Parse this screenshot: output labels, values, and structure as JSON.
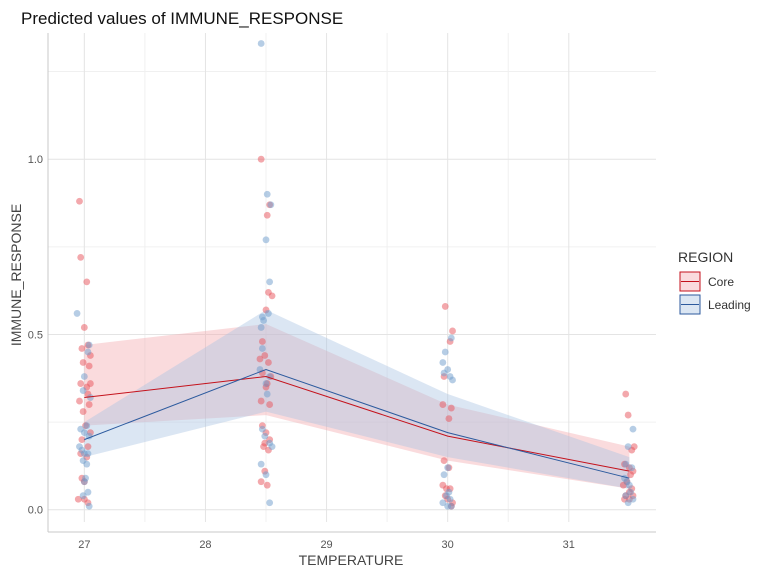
{
  "chart_data": {
    "type": "line",
    "title": "Predicted values of IMMUNE_RESPONSE",
    "xlabel": "TEMPERATURE",
    "ylabel": "IMMUNE_RESPONSE",
    "xlim": [
      26.7,
      31.72
    ],
    "ylim": [
      -0.035,
      1.36
    ],
    "x_ticks": [
      27,
      28,
      29,
      30,
      31
    ],
    "x_tick_labels": [
      "27",
      "28",
      "29",
      "30",
      "31"
    ],
    "y_ticks": [
      0,
      0.5,
      1
    ],
    "y_tick_labels": [
      "0.0",
      "0.5",
      "1.0"
    ],
    "grid": true,
    "legend": {
      "title": "REGION",
      "position": "right"
    },
    "colors": {
      "Core": "#c4121c",
      "Leading": "#2c5a9e",
      "Core_fill": "#f4a9ad",
      "Leading_fill": "#a9c4e2",
      "Core_point": "#e8525a",
      "Leading_point": "#6e9bcb"
    },
    "series": [
      {
        "name": "Core",
        "x": [
          27,
          28.5,
          30,
          31.5
        ],
        "y": [
          0.32,
          0.38,
          0.21,
          0.11
        ],
        "ci_low": [
          0.24,
          0.27,
          0.14,
          0.06
        ],
        "ci_high": [
          0.47,
          0.53,
          0.3,
          0.18
        ],
        "points": [
          [
            26.96,
            0.88
          ],
          [
            26.97,
            0.72
          ],
          [
            27.02,
            0.65
          ],
          [
            27.0,
            0.52
          ],
          [
            26.98,
            0.46
          ],
          [
            27.03,
            0.47
          ],
          [
            27.05,
            0.44
          ],
          [
            26.99,
            0.42
          ],
          [
            27.04,
            0.41
          ],
          [
            26.97,
            0.36
          ],
          [
            27.02,
            0.35
          ],
          [
            27.05,
            0.36
          ],
          [
            26.96,
            0.31
          ],
          [
            27.03,
            0.33
          ],
          [
            27.04,
            0.3
          ],
          [
            26.99,
            0.28
          ],
          [
            27.01,
            0.24
          ],
          [
            27.05,
            0.22
          ],
          [
            26.98,
            0.2
          ],
          [
            27.03,
            0.18
          ],
          [
            26.97,
            0.16
          ],
          [
            27.02,
            0.15
          ],
          [
            26.98,
            0.09
          ],
          [
            27.0,
            0.08
          ],
          [
            26.95,
            0.03
          ],
          [
            27.0,
            0.03
          ],
          [
            27.03,
            0.02
          ],
          [
            28.46,
            1.0
          ],
          [
            28.53,
            0.87
          ],
          [
            28.51,
            0.84
          ],
          [
            28.52,
            0.62
          ],
          [
            28.55,
            0.61
          ],
          [
            28.5,
            0.57
          ],
          [
            28.47,
            0.48
          ],
          [
            28.49,
            0.44
          ],
          [
            28.45,
            0.43
          ],
          [
            28.52,
            0.42
          ],
          [
            28.47,
            0.39
          ],
          [
            28.54,
            0.38
          ],
          [
            28.51,
            0.36
          ],
          [
            28.5,
            0.35
          ],
          [
            28.46,
            0.31
          ],
          [
            28.53,
            0.3
          ],
          [
            28.47,
            0.24
          ],
          [
            28.5,
            0.22
          ],
          [
            28.53,
            0.2
          ],
          [
            28.49,
            0.19
          ],
          [
            28.48,
            0.18
          ],
          [
            28.52,
            0.17
          ],
          [
            28.49,
            0.11
          ],
          [
            28.46,
            0.08
          ],
          [
            28.51,
            0.07
          ],
          [
            29.98,
            0.58
          ],
          [
            30.04,
            0.51
          ],
          [
            30.02,
            0.48
          ],
          [
            29.97,
            0.38
          ],
          [
            29.96,
            0.3
          ],
          [
            30.03,
            0.29
          ],
          [
            30.01,
            0.26
          ],
          [
            29.97,
            0.14
          ],
          [
            30.01,
            0.12
          ],
          [
            29.96,
            0.07
          ],
          [
            29.99,
            0.06
          ],
          [
            30.02,
            0.06
          ],
          [
            29.98,
            0.04
          ],
          [
            30.0,
            0.03
          ],
          [
            30.04,
            0.02
          ],
          [
            30.03,
            0.01
          ],
          [
            31.47,
            0.33
          ],
          [
            31.49,
            0.27
          ],
          [
            31.54,
            0.18
          ],
          [
            31.52,
            0.17
          ],
          [
            31.46,
            0.13
          ],
          [
            31.5,
            0.12
          ],
          [
            31.53,
            0.11
          ],
          [
            31.51,
            0.1
          ],
          [
            31.48,
            0.08
          ],
          [
            31.45,
            0.07
          ],
          [
            31.52,
            0.06
          ],
          [
            31.5,
            0.05
          ],
          [
            31.47,
            0.04
          ],
          [
            31.53,
            0.04
          ],
          [
            31.46,
            0.03
          ],
          [
            31.5,
            0.03
          ]
        ]
      },
      {
        "name": "Leading",
        "x": [
          27,
          28.5,
          30,
          31.5
        ],
        "y": [
          0.2,
          0.4,
          0.22,
          0.09
        ],
        "ci_low": [
          0.15,
          0.28,
          0.15,
          0.06
        ],
        "ci_high": [
          0.25,
          0.57,
          0.33,
          0.15
        ],
        "points": [
          [
            26.94,
            0.56
          ],
          [
            27.04,
            0.47
          ],
          [
            27.03,
            0.45
          ],
          [
            27.0,
            0.38
          ],
          [
            26.99,
            0.34
          ],
          [
            27.05,
            0.32
          ],
          [
            27.02,
            0.24
          ],
          [
            26.97,
            0.23
          ],
          [
            27.0,
            0.22
          ],
          [
            27.04,
            0.21
          ],
          [
            26.96,
            0.18
          ],
          [
            26.98,
            0.17
          ],
          [
            27.0,
            0.16
          ],
          [
            27.03,
            0.16
          ],
          [
            26.99,
            0.14
          ],
          [
            27.02,
            0.13
          ],
          [
            27.01,
            0.09
          ],
          [
            27.0,
            0.08
          ],
          [
            27.03,
            0.05
          ],
          [
            26.99,
            0.04
          ],
          [
            27.04,
            0.01
          ],
          [
            28.46,
            1.33
          ],
          [
            28.51,
            0.9
          ],
          [
            28.54,
            0.87
          ],
          [
            28.5,
            0.77
          ],
          [
            28.53,
            0.65
          ],
          [
            28.52,
            0.56
          ],
          [
            28.47,
            0.55
          ],
          [
            28.48,
            0.54
          ],
          [
            28.46,
            0.52
          ],
          [
            28.47,
            0.46
          ],
          [
            28.45,
            0.4
          ],
          [
            28.53,
            0.38
          ],
          [
            28.5,
            0.36
          ],
          [
            28.51,
            0.33
          ],
          [
            28.47,
            0.23
          ],
          [
            28.49,
            0.21
          ],
          [
            28.53,
            0.19
          ],
          [
            28.55,
            0.18
          ],
          [
            28.46,
            0.13
          ],
          [
            28.5,
            0.1
          ],
          [
            28.53,
            0.02
          ],
          [
            29.98,
            0.45
          ],
          [
            30.03,
            0.49
          ],
          [
            29.96,
            0.42
          ],
          [
            30.0,
            0.4
          ],
          [
            29.97,
            0.39
          ],
          [
            30.02,
            0.38
          ],
          [
            30.04,
            0.37
          ],
          [
            30.0,
            0.12
          ],
          [
            29.97,
            0.1
          ],
          [
            30.01,
            0.05
          ],
          [
            29.99,
            0.04
          ],
          [
            30.02,
            0.03
          ],
          [
            29.96,
            0.02
          ],
          [
            30.0,
            0.01
          ],
          [
            30.03,
            0.01
          ],
          [
            31.53,
            0.23
          ],
          [
            31.49,
            0.18
          ],
          [
            31.47,
            0.13
          ],
          [
            31.52,
            0.12
          ],
          [
            31.46,
            0.09
          ],
          [
            31.48,
            0.08
          ],
          [
            31.5,
            0.07
          ],
          [
            31.51,
            0.05
          ],
          [
            31.47,
            0.04
          ],
          [
            31.53,
            0.03
          ],
          [
            31.49,
            0.02
          ]
        ]
      }
    ]
  }
}
